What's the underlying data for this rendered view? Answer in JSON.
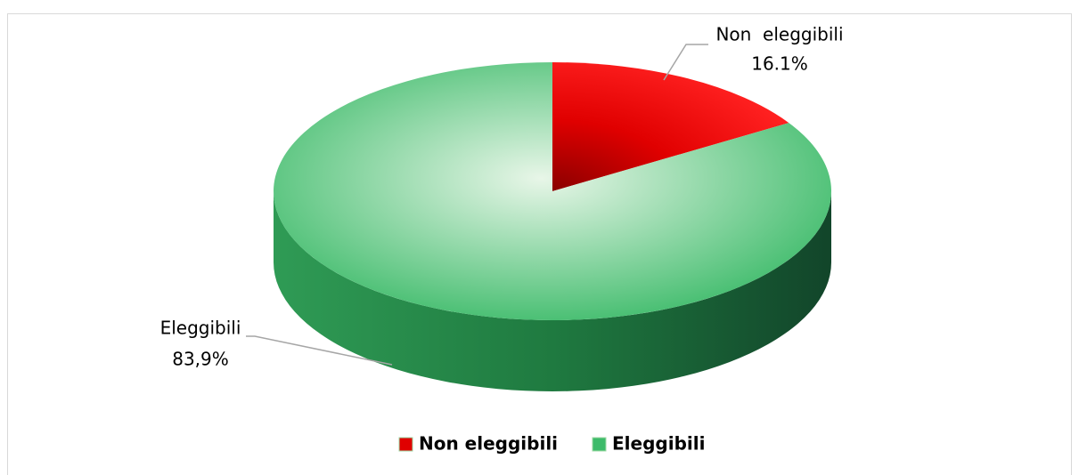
{
  "chart_data": {
    "type": "pie3d",
    "categories": [
      "Non eleggibili",
      "Eleggibili"
    ],
    "label_names": [
      "Non  eleggibili",
      "Eleggibili"
    ],
    "values": [
      16.1,
      83.9
    ],
    "value_labels": [
      "16.1%",
      "83,9%"
    ],
    "colors": [
      "#e00000",
      "#3dbb6a"
    ],
    "legend": "bottom"
  }
}
